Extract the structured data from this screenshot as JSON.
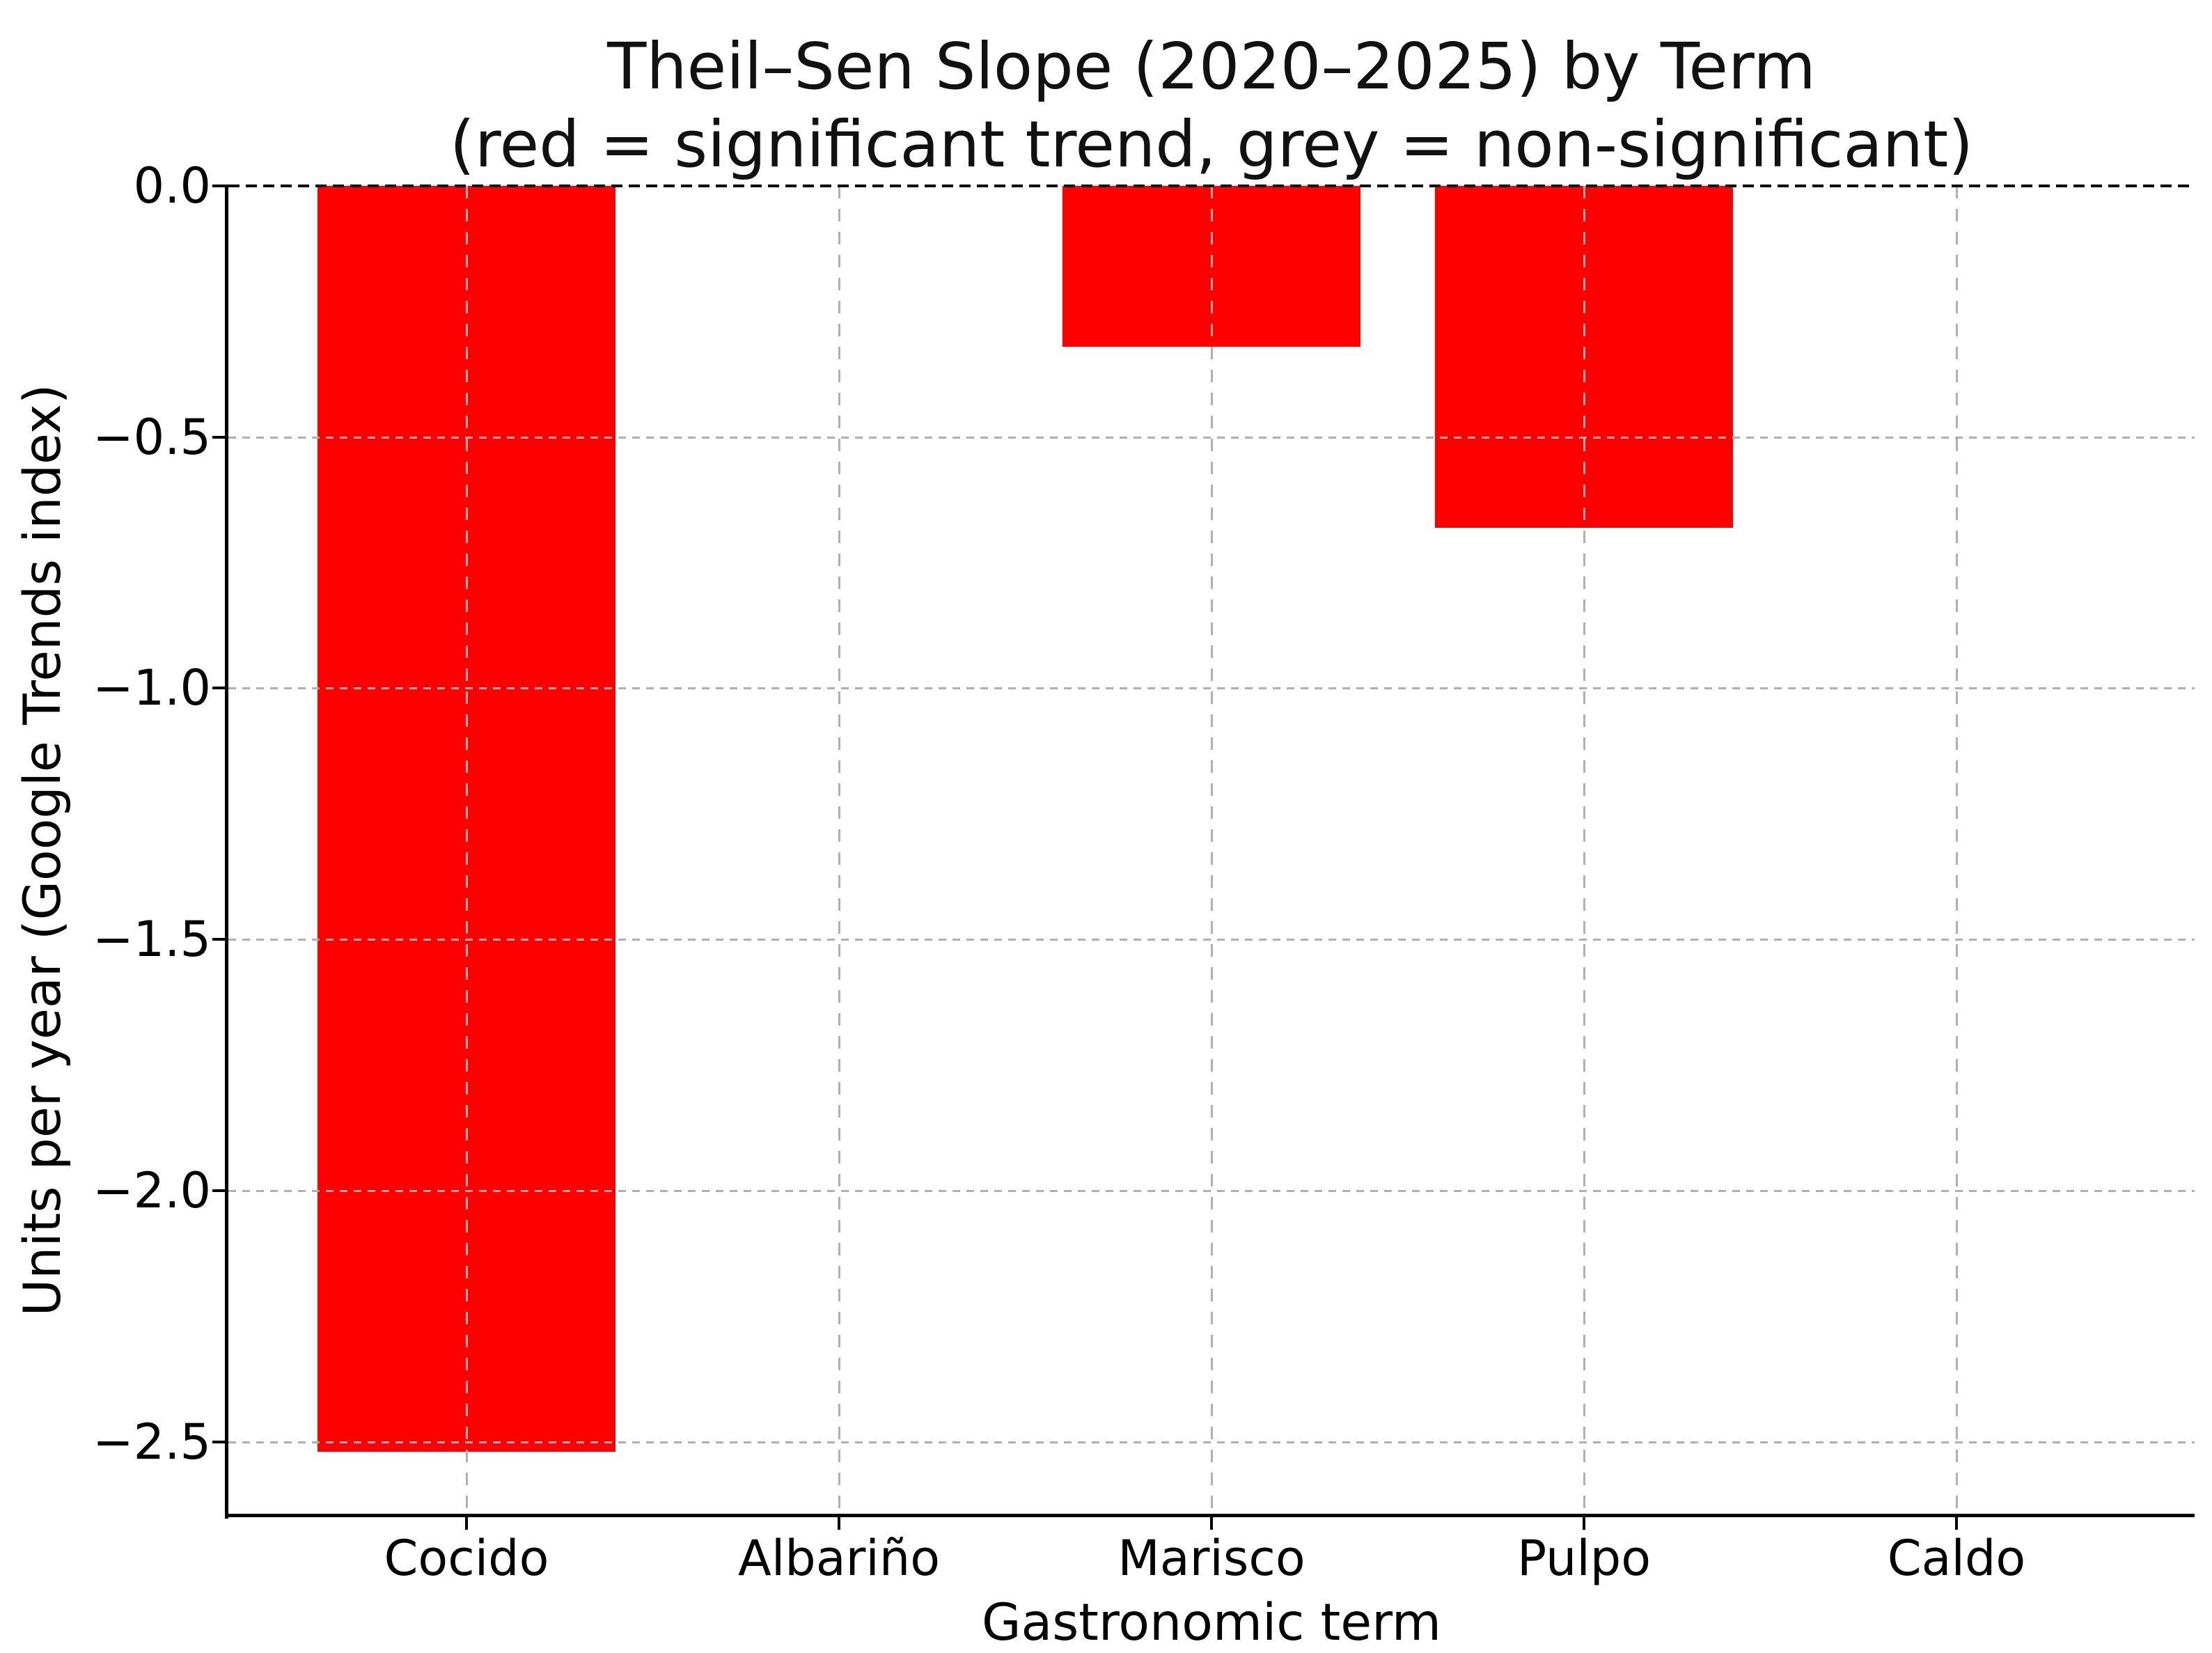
{
  "chart_data": {
    "type": "bar",
    "title": "Theil–Sen Slope (2020–2025) by Term",
    "subtitle": "(red = significant trend, grey = non-significant)",
    "xlabel": "Gastronomic term",
    "ylabel": "Units per year (Google Trends index)",
    "categories": [
      "Cocido",
      "Albariño",
      "Marisco",
      "Pulpo",
      "Caldo"
    ],
    "values": [
      -2.52,
      0.0,
      -0.32,
      -0.68,
      0.0
    ],
    "bar_colors": [
      "#ff0000",
      "#808080",
      "#ff0000",
      "#ff0000",
      "#808080"
    ],
    "color_legend": {
      "significant": "#ff0000",
      "non_significant": "#808080"
    },
    "ylim": [
      -2.646,
      0
    ],
    "yticks": [
      0,
      -0.5,
      -1.0,
      -1.5,
      -2.0,
      -2.5
    ],
    "ytick_labels": [
      "0.0",
      "−0.5",
      "−1.0",
      "−1.5",
      "−2.0",
      "−2.5"
    ],
    "grid": true,
    "grid_style": "dashed",
    "grid_color": "#b0b0b0",
    "zero_line_color": "#000000",
    "background_color": "#ffffff",
    "text_color": "#000000"
  }
}
